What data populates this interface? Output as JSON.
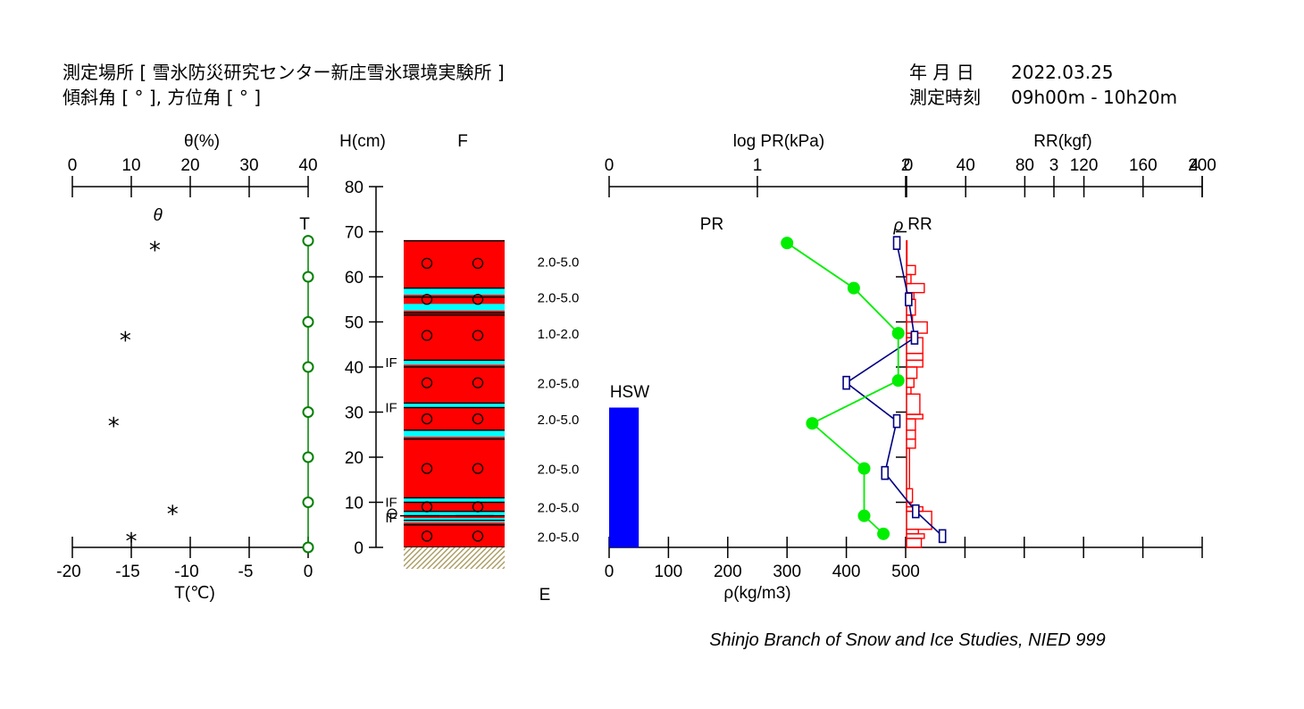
{
  "header": {
    "site": "測定場所 [ 雪氷防災研究センター新庄雪氷環境実験所 ]",
    "slope": "傾斜角 [ ° ], 方位角 [ ° ]",
    "date_label": "年 月 日",
    "date_value": "2022.03.25",
    "time_label": "測定時刻",
    "time_value": "09h00m - 10h20m"
  },
  "credit": "Shinjo Branch of Snow and Ice Studies, NIED 999",
  "chart_data": [
    {
      "type": "scatter",
      "name": "temperature-and-wetness",
      "top_axis": {
        "label": "θ(%)",
        "range": [
          0,
          40
        ],
        "ticks": [
          "0",
          "10",
          "20",
          "30",
          "40"
        ]
      },
      "bottom_axis": {
        "label": "T(℃)",
        "range": [
          -20,
          0
        ],
        "ticks": [
          "-20",
          "-15",
          "-10",
          "-5",
          "0"
        ]
      },
      "theta_label": "θ",
      "T_label": "T",
      "theta_points": [
        {
          "theta": 14,
          "h": 66.5
        },
        {
          "theta": 9,
          "h": 46.5
        },
        {
          "theta": 7,
          "h": 27.5
        },
        {
          "theta": 17,
          "h": 8
        },
        {
          "theta": 10,
          "h": 2
        }
      ],
      "T_points": [
        {
          "t": 0,
          "h": 68
        },
        {
          "t": 0,
          "h": 60
        },
        {
          "t": 0,
          "h": 50
        },
        {
          "t": 0,
          "h": 40
        },
        {
          "t": 0,
          "h": 30
        },
        {
          "t": 0,
          "h": 20
        },
        {
          "t": 0,
          "h": 10
        },
        {
          "t": 0,
          "h": 0
        }
      ]
    },
    {
      "type": "stratigraphy",
      "name": "snow-profile",
      "height_axis": {
        "label": "H(cm)",
        "range": [
          0,
          80
        ],
        "ticks": [
          "0",
          "10",
          "20",
          "30",
          "40",
          "50",
          "60",
          "70",
          "80"
        ]
      },
      "top_label": "F",
      "bottom_label": "E",
      "colors": {
        "wet_snow": "#ff0000",
        "ice_layer": "#00ffff",
        "ground": "#a89a60"
      },
      "boundaries": [
        68,
        57.5,
        55.5,
        52,
        51.5,
        41.5,
        40,
        32,
        31,
        26,
        24,
        11,
        10,
        8,
        7,
        6,
        5,
        0
      ],
      "ice_bands": [
        [
          56,
          57.5
        ],
        [
          52.5,
          54
        ],
        [
          40.5,
          41.5
        ],
        [
          31,
          32
        ],
        [
          24.5,
          26
        ],
        [
          10,
          11
        ],
        [
          7,
          8
        ],
        [
          5.5,
          6.5
        ]
      ],
      "grain_markers": [
        63,
        55,
        47,
        36.5,
        28.5,
        17.5,
        9,
        2.5
      ],
      "ice_marker_labels": [
        {
          "h": 42,
          "text": "IF"
        },
        {
          "h": 32,
          "text": "IF"
        },
        {
          "h": 11,
          "text": "IF"
        },
        {
          "h": 7.5,
          "text": "IF"
        }
      ],
      "grain_size_labels": [
        {
          "h": 63.5,
          "text": "2.0-5.0"
        },
        {
          "h": 55.5,
          "text": "2.0-5.0"
        },
        {
          "h": 47.5,
          "text": "1.0-2.0"
        },
        {
          "h": 36.5,
          "text": "2.0-5.0"
        },
        {
          "h": 28.5,
          "text": "2.0-5.0"
        },
        {
          "h": 17.5,
          "text": "2.0-5.0"
        },
        {
          "h": 9,
          "text": "2.0-5.0"
        },
        {
          "h": 2.5,
          "text": "2.0-5.0"
        }
      ]
    },
    {
      "type": "line",
      "name": "density-hardness-resistance",
      "pr_axis": {
        "label": "log PR(kPa)",
        "range": [
          0,
          4
        ],
        "ticks": [
          "0",
          "1",
          "2",
          "3",
          "4"
        ]
      },
      "density_axis": {
        "label": "ρ(kg/m3)",
        "range": [
          0,
          1000
        ],
        "ticks": [
          "0",
          "100",
          "200",
          "300",
          "400",
          "500"
        ]
      },
      "rr_axis": {
        "label": "RR(kgf)",
        "range": [
          0,
          200
        ],
        "ticks": [
          "0",
          "40",
          "80",
          "120",
          "160",
          "200"
        ]
      },
      "hsw": {
        "label": "HSW",
        "value_mm": 310,
        "scale_note": "drawn on density scale"
      },
      "pr_label": "PR",
      "rho_label": "ρ",
      "rr_label": "RR",
      "colors": {
        "hsw": "#0000ff",
        "pr": "#00ee00",
        "density": "#000080",
        "rr": "#ff0000"
      },
      "PR": [
        {
          "h": 67.5,
          "log_pr": 1.2
        },
        {
          "h": 57.5,
          "log_pr": 1.65
        },
        {
          "h": 47.5,
          "log_pr": 1.95
        },
        {
          "h": 37,
          "log_pr": 1.95
        },
        {
          "h": 27.5,
          "log_pr": 1.37
        },
        {
          "h": 17.5,
          "log_pr": 1.72
        },
        {
          "h": 7,
          "log_pr": 1.72
        },
        {
          "h": 3,
          "log_pr": 1.85
        }
      ],
      "density": [
        {
          "h": 67.5,
          "rho": 485
        },
        {
          "h": 55,
          "rho": 505
        },
        {
          "h": 46.5,
          "rho": 515
        },
        {
          "h": 36.5,
          "rho": 400
        },
        {
          "h": 28,
          "rho": 485
        },
        {
          "h": 16.5,
          "rho": 465
        },
        {
          "h": 8,
          "rho": 517
        },
        {
          "h": 2.5,
          "rho": 562
        }
      ],
      "RR": [
        {
          "h": 68,
          "rr": 0
        },
        {
          "h": 62.5,
          "rr": 6
        },
        {
          "h": 60.5,
          "rr": 3
        },
        {
          "h": 58.5,
          "rr": 12
        },
        {
          "h": 56.5,
          "rr": 5
        },
        {
          "h": 55,
          "rr": 6
        },
        {
          "h": 51.5,
          "rr": 4
        },
        {
          "h": 50,
          "rr": 14
        },
        {
          "h": 47.5,
          "rr": 3
        },
        {
          "h": 46.5,
          "rr": 11
        },
        {
          "h": 43,
          "rr": 11
        },
        {
          "h": 41.5,
          "rr": 11
        },
        {
          "h": 40,
          "rr": 7
        },
        {
          "h": 37.5,
          "rr": 5
        },
        {
          "h": 35.5,
          "rr": 3
        },
        {
          "h": 34,
          "rr": 9
        },
        {
          "h": 29.5,
          "rr": 11
        },
        {
          "h": 28.5,
          "rr": 6
        },
        {
          "h": 26,
          "rr": 6
        },
        {
          "h": 24,
          "rr": 6
        },
        {
          "h": 22,
          "rr": 2
        },
        {
          "h": 13,
          "rr": 4
        },
        {
          "h": 10,
          "rr": 3
        },
        {
          "h": 9,
          "rr": 11
        },
        {
          "h": 8,
          "rr": 17
        },
        {
          "h": 4,
          "rr": 8
        },
        {
          "h": 3,
          "rr": 12
        },
        {
          "h": 2,
          "rr": 10
        }
      ]
    }
  ]
}
